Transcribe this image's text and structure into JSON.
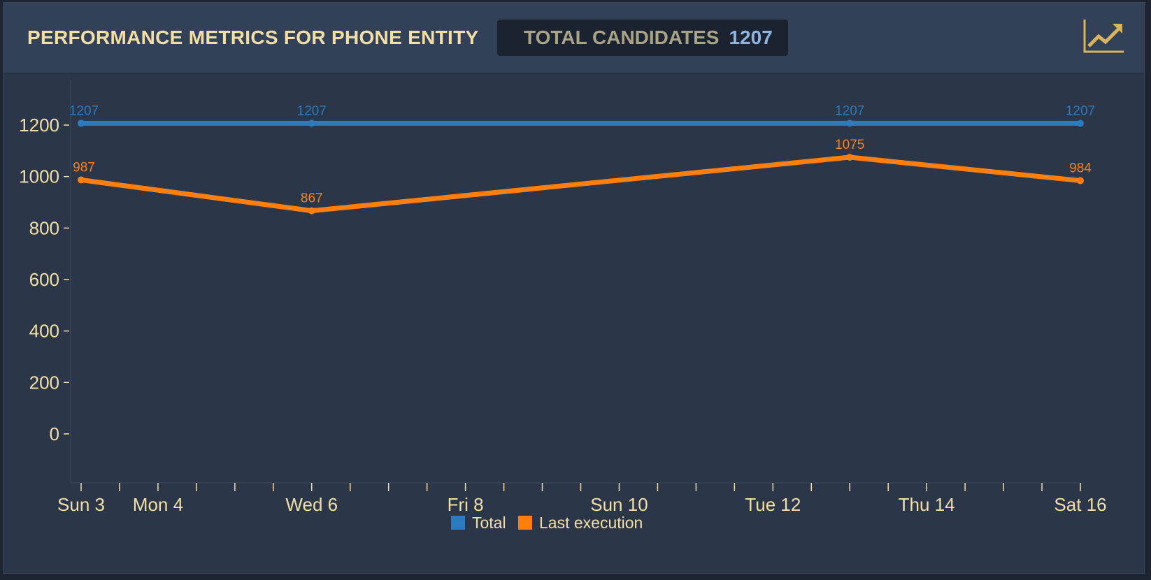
{
  "header": {
    "title": "PERFORMANCE METRICS FOR PHONE ENTITY",
    "badge_label": "TOTAL CANDIDATES",
    "badge_value": "1207",
    "chart_button_icon": "trending-up-icon"
  },
  "colors": {
    "accent_text": "#f2dfa7",
    "total": "#2a7bbf",
    "last_execution": "#ff7f0e",
    "panel_bg": "#2b3748",
    "header_bg": "#324157"
  },
  "chart_data": {
    "type": "line",
    "title": "",
    "xlabel": "",
    "ylabel": "",
    "x_ticks": [
      "Sun 3",
      "Mon 4",
      "Wed 6",
      "Fri 8",
      "Sun 10",
      "Tue 12",
      "Thu 14",
      "Sat 16"
    ],
    "y_ticks": [
      "1200",
      "1000",
      "800",
      "600",
      "400",
      "200",
      "0"
    ],
    "x_range": [
      "2017-09-03",
      "2017-09-16"
    ],
    "ylim": [
      -180,
      1390
    ],
    "series": [
      {
        "name": "Total",
        "color": "#2a7bbf",
        "points": [
          {
            "x": "2017-09-03",
            "y": 1207,
            "label": "1207"
          },
          {
            "x": "2017-09-06",
            "y": 1207,
            "label": "1207"
          },
          {
            "x": "2017-09-13",
            "y": 1207,
            "label": "1207"
          },
          {
            "x": "2017-09-16",
            "y": 1207,
            "label": "1207"
          }
        ]
      },
      {
        "name": "Last execution",
        "color": "#ff7f0e",
        "points": [
          {
            "x": "2017-09-03",
            "y": 987,
            "label": "987"
          },
          {
            "x": "2017-09-06",
            "y": 867,
            "label": "867"
          },
          {
            "x": "2017-09-13",
            "y": 1075,
            "label": "1075"
          },
          {
            "x": "2017-09-16",
            "y": 984,
            "label": "984"
          }
        ]
      }
    ],
    "legend": [
      "Total",
      "Last execution"
    ],
    "legend_position": "bottom-center",
    "grid": false
  }
}
